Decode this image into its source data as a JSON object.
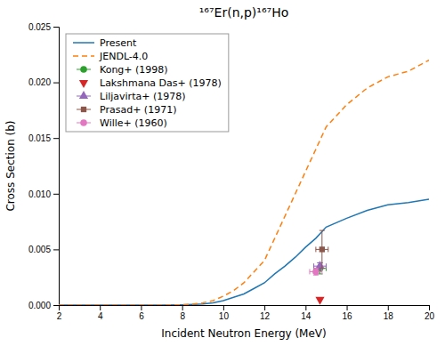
{
  "chart_data": {
    "type": "line",
    "title": "¹⁶⁷Er(n,p)¹⁶⁷Ho",
    "x_label": "Incident Neutron Energy (MeV)",
    "y_label": "Cross Section (b)",
    "xlim": [
      2,
      20
    ],
    "ylim": [
      0.0,
      0.025
    ],
    "xticks": [
      2,
      4,
      6,
      8,
      10,
      12,
      14,
      16,
      18,
      20
    ],
    "yticks": [
      {
        "value": 0.0,
        "label": "0.000"
      },
      0.005,
      {
        "value": 0.01,
        "label": "0.010"
      },
      0.015,
      {
        "value": 0.02,
        "label": "0.020"
      },
      0.025
    ],
    "grid": false,
    "legend": "top-left",
    "series": [
      {
        "name": "Present",
        "type": "line",
        "line_style": "solid",
        "x": [
          2,
          3,
          4,
          5,
          6,
          7,
          8,
          8.5,
          9,
          9.5,
          10,
          10.5,
          11,
          11.5,
          12,
          12.5,
          13,
          13.5,
          14,
          14.5,
          15,
          16,
          17,
          18,
          19,
          20
        ],
        "values": [
          0.0,
          0.0,
          0.0,
          0.0,
          0.0,
          0.0,
          2e-05,
          5e-05,
          0.0001,
          0.0002,
          0.0004,
          0.0007,
          0.001,
          0.0015,
          0.002,
          0.0028,
          0.0035,
          0.0043,
          0.0052,
          0.006,
          0.007,
          0.0078,
          0.0085,
          0.009,
          0.0092,
          0.0095
        ]
      },
      {
        "name": "JENDL-4.0",
        "type": "line",
        "line_style": "dashed",
        "x": [
          2,
          3,
          4,
          5,
          6,
          7,
          8,
          8.5,
          9,
          9.5,
          10,
          10.5,
          11,
          11.5,
          12,
          12.5,
          13,
          13.5,
          14,
          14.5,
          15,
          16,
          17,
          18,
          19,
          20
        ],
        "values": [
          0.0,
          0.0,
          0.0,
          0.0,
          0.0,
          0.0,
          3e-05,
          8e-05,
          0.0002,
          0.0004,
          0.0008,
          0.0013,
          0.002,
          0.003,
          0.004,
          0.006,
          0.008,
          0.01,
          0.012,
          0.014,
          0.016,
          0.018,
          0.0195,
          0.0205,
          0.021,
          0.022
        ]
      },
      {
        "name": "Kong+ (1998)",
        "type": "scatter",
        "marker": "circle",
        "x": [
          14.7
        ],
        "values": [
          0.0033
        ],
        "x_error": [
          0.3
        ],
        "error": [
          0.0005
        ]
      },
      {
        "name": "Lakshmana Das+ (1978)",
        "type": "scatter",
        "marker": "triangle-down",
        "x": [
          14.7
        ],
        "values": [
          0.0005
        ]
      },
      {
        "name": "Liljavirta+ (1978)",
        "type": "scatter",
        "marker": "triangle-up",
        "x": [
          14.7
        ],
        "values": [
          0.0035
        ],
        "x_error": [
          0.3
        ],
        "error": [
          0.0003
        ]
      },
      {
        "name": "Prasad+ (1971)",
        "type": "scatter",
        "marker": "square",
        "x": [
          14.8
        ],
        "values": [
          0.005
        ],
        "x_error": [
          0.3
        ],
        "error": [
          0.0017
        ]
      },
      {
        "name": "Wille+ (1960)",
        "type": "scatter",
        "marker": "circle",
        "x": [
          14.5
        ],
        "values": [
          0.003
        ],
        "x_error": [
          0.3
        ],
        "error": [
          0.0003
        ]
      }
    ]
  }
}
